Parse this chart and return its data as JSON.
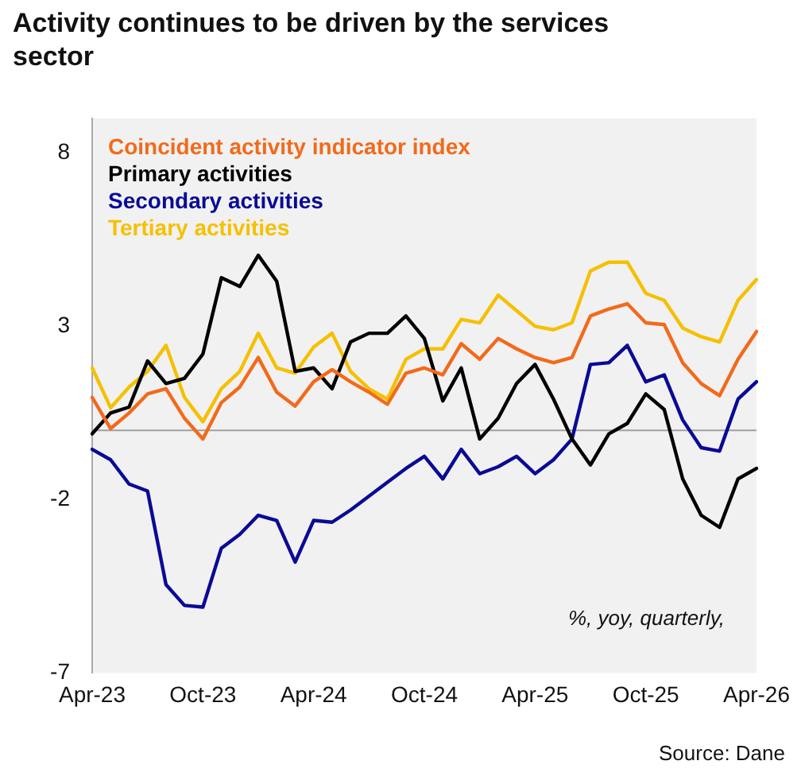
{
  "chart_data": {
    "type": "line",
    "title": "Activity continues to be driven by the services sector",
    "categories": [
      "Apr-23",
      null,
      null,
      null,
      null,
      null,
      "Oct-23",
      null,
      null,
      null,
      null,
      null,
      "Apr-24",
      null,
      null,
      null,
      null,
      null,
      "Oct-24",
      null,
      null,
      null,
      null,
      null,
      "Apr-25",
      null,
      null,
      null,
      null,
      null,
      "Oct-25",
      null,
      null,
      null,
      null,
      null,
      "Apr-26"
    ],
    "series": [
      {
        "name": "Coincident activity indicator index",
        "color": "#f26a1b",
        "values": [
          0.95,
          0.05,
          0.5,
          1.05,
          1.2,
          0.35,
          -0.25,
          0.8,
          1.25,
          2.1,
          1.1,
          0.7,
          1.4,
          1.75,
          1.4,
          1.1,
          0.75,
          1.65,
          1.8,
          1.6,
          2.5,
          2.05,
          2.65,
          2.35,
          2.1,
          1.95,
          2.1,
          3.3,
          3.5,
          3.65,
          3.1,
          3.05,
          1.95,
          1.35,
          1.0,
          2.05,
          2.85
        ]
      },
      {
        "name": "Primary activities",
        "color": "#000000",
        "values": [
          -0.1,
          0.5,
          0.67,
          2.0,
          1.35,
          1.5,
          2.2,
          4.4,
          4.15,
          5.05,
          4.3,
          1.7,
          1.8,
          1.2,
          2.55,
          2.8,
          2.8,
          3.3,
          2.65,
          0.85,
          1.8,
          -0.25,
          0.35,
          1.35,
          1.9,
          0.9,
          -0.25,
          -1.0,
          -0.1,
          0.2,
          1.05,
          0.6,
          -1.4,
          -2.45,
          -2.8,
          -1.4,
          -1.1
        ]
      },
      {
        "name": "Secondary activities",
        "color": "#0a0a96",
        "values": [
          -0.55,
          -0.85,
          -1.55,
          -1.75,
          -4.45,
          -5.05,
          -5.1,
          -3.4,
          -3.0,
          -2.45,
          -2.6,
          -3.8,
          -2.6,
          -2.65,
          -2.3,
          -1.9,
          -1.5,
          -1.1,
          -0.75,
          -1.4,
          -0.55,
          -1.25,
          -1.05,
          -0.75,
          -1.25,
          -0.85,
          -0.25,
          1.9,
          1.95,
          2.45,
          1.4,
          1.6,
          0.3,
          -0.5,
          -0.6,
          0.9,
          1.4
        ]
      },
      {
        "name": "Tertiary activities",
        "color": "#f5c000",
        "values": [
          1.8,
          0.65,
          1.25,
          1.7,
          2.45,
          0.95,
          0.25,
          1.2,
          1.7,
          2.8,
          1.8,
          1.65,
          2.4,
          2.8,
          1.7,
          1.2,
          0.9,
          2.05,
          2.35,
          2.35,
          3.2,
          3.1,
          3.9,
          3.45,
          3.0,
          2.9,
          3.1,
          4.6,
          4.85,
          4.85,
          3.95,
          3.75,
          2.95,
          2.7,
          2.55,
          3.75,
          4.35
        ]
      }
    ],
    "ylim": [
      -7,
      9
    ],
    "yticks": [
      -7,
      -2,
      3,
      8
    ],
    "grid": false,
    "legend": "top left",
    "marker": "none",
    "line_style": "solid",
    "ref_lines": [
      {
        "axis": "y",
        "value": 0,
        "color": "#a0a0a0"
      }
    ],
    "annotations": [
      "%, yoy, quarterly,",
      "Source: Dane"
    ]
  }
}
